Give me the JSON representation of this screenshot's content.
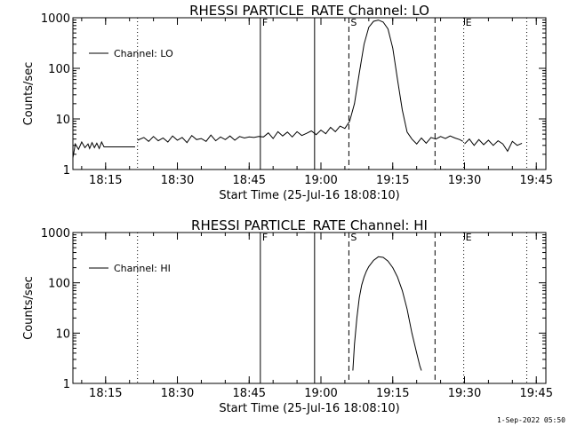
{
  "footer": {
    "timestamp": "1-Sep-2022 05:50"
  },
  "chart_data": [
    {
      "type": "line",
      "title": "RHESSI PARTICLE_RATE Channel: LO",
      "xlabel": "Start Time (25-Jul-16 18:08:10)",
      "ylabel": "Counts/sec",
      "yscale": "log",
      "xlim": [
        "18:08:10",
        "19:47:00"
      ],
      "ylim": [
        1,
        1000
      ],
      "x_ticks": [
        "18:15",
        "18:30",
        "18:45",
        "19:00",
        "19:15",
        "19:30",
        "19:45"
      ],
      "y_ticks": [
        "1",
        "10",
        "100",
        "1000"
      ],
      "legend": {
        "position": "top-left",
        "entries": [
          "Channel: LO"
        ]
      },
      "markers": [
        {
          "time": "18:08:10",
          "style": "dotted",
          "label": ""
        },
        {
          "time": "18:21:40",
          "style": "dotted",
          "label": ""
        },
        {
          "time": "18:47:20",
          "style": "solid",
          "label": "F"
        },
        {
          "time": "18:58:40",
          "style": "solid",
          "label": ""
        },
        {
          "time": "19:05:50",
          "style": "dashed",
          "label": "S"
        },
        {
          "time": "19:23:50",
          "style": "dashed",
          "label": ""
        },
        {
          "time": "19:29:50",
          "style": "dotted",
          "label": "E"
        },
        {
          "time": "19:43:00",
          "style": "dotted",
          "label": ""
        }
      ],
      "series": [
        {
          "name": "Channel: LO",
          "segments": [
            {
              "x": [
                "18:08:10",
                "18:08:40",
                "18:09:20",
                "18:10:00",
                "18:10:40",
                "18:11:20",
                "18:11:40",
                "18:12:10",
                "18:12:40",
                "18:13:10",
                "18:13:40",
                "18:14:10",
                "18:14:40",
                "18:15:00",
                "18:16:00",
                "18:18:00",
                "18:20:00",
                "18:21:10"
              ],
              "y": [
                1.7,
                3.2,
                2.5,
                3.5,
                2.7,
                3.2,
                2.6,
                3.4,
                2.7,
                3.3,
                2.6,
                3.5,
                2.8,
                2.8,
                2.8,
                2.8,
                2.8,
                2.8
              ]
            },
            {
              "x": [
                "18:21:40",
                "18:23:00",
                "18:24:00",
                "18:25:00",
                "18:26:00",
                "18:27:00",
                "18:28:00",
                "18:29:00",
                "18:30:00",
                "18:31:00",
                "18:32:00",
                "18:33:00",
                "18:34:00",
                "18:35:00",
                "18:36:00",
                "18:37:00",
                "18:38:00",
                "18:39:00",
                "18:40:00",
                "18:41:00",
                "18:42:00",
                "18:43:00",
                "18:44:00",
                "18:45:00",
                "18:46:00",
                "18:47:00",
                "18:48:00",
                "18:49:00",
                "18:50:00",
                "18:51:00",
                "18:52:00",
                "18:53:00",
                "18:54:00",
                "18:55:00",
                "18:56:00",
                "18:57:00",
                "18:58:00",
                "18:59:00",
                "19:00:00",
                "19:01:00",
                "19:02:00",
                "19:03:00",
                "19:04:00",
                "19:05:00",
                "19:06:00",
                "19:07:00",
                "19:08:00",
                "19:09:00",
                "19:10:00",
                "19:11:00",
                "19:12:00",
                "19:13:00",
                "19:14:00",
                "19:15:00",
                "19:16:00",
                "19:17:00",
                "19:18:00",
                "19:19:00",
                "19:20:00",
                "19:21:00",
                "19:22:00",
                "19:23:00",
                "19:24:00",
                "19:25:00",
                "19:26:00",
                "19:27:00",
                "19:28:00",
                "19:29:00",
                "19:29:40"
              ],
              "y": [
                3.8,
                4.3,
                3.6,
                4.5,
                3.7,
                4.2,
                3.5,
                4.6,
                3.8,
                4.3,
                3.4,
                4.7,
                3.9,
                4.1,
                3.6,
                4.8,
                3.7,
                4.4,
                3.9,
                4.6,
                3.8,
                4.5,
                4.2,
                4.4,
                4.3,
                4.5,
                4.4,
                5.3,
                4.1,
                5.6,
                4.6,
                5.5,
                4.4,
                5.6,
                4.7,
                5.2,
                5.8,
                4.9,
                6.0,
                5.1,
                6.8,
                5.6,
                7.2,
                6.5,
                9.0,
                20,
                80,
                300,
                650,
                850,
                900,
                820,
                600,
                250,
                60,
                15,
                5.5,
                4.0,
                3.2,
                4.2,
                3.3,
                4.3,
                4.0,
                4.5,
                4.1,
                4.6,
                4.2,
                3.9,
                3.6
              ]
            },
            {
              "x": [
                "19:30:00",
                "19:31:00",
                "19:32:00",
                "19:33:00",
                "19:34:00",
                "19:35:00",
                "19:36:00",
                "19:37:00",
                "19:38:00",
                "19:39:00",
                "19:40:00",
                "19:41:00",
                "19:42:00"
              ],
              "y": [
                3.2,
                4.0,
                3.0,
                3.9,
                3.1,
                3.8,
                3.0,
                3.7,
                3.2,
                2.3,
                3.6,
                3.0,
                3.3
              ]
            }
          ]
        }
      ]
    },
    {
      "type": "line",
      "title": "RHESSI PARTICLE_RATE Channel: HI",
      "xlabel": "Start Time (25-Jul-16 18:08:10)",
      "ylabel": "Counts/sec",
      "yscale": "log",
      "xlim": [
        "18:08:10",
        "19:47:00"
      ],
      "ylim": [
        1,
        1000
      ],
      "x_ticks": [
        "18:15",
        "18:30",
        "18:45",
        "19:00",
        "19:15",
        "19:30",
        "19:45"
      ],
      "y_ticks": [
        "1",
        "10",
        "100",
        "1000"
      ],
      "legend": {
        "position": "top-left",
        "entries": [
          "Channel: HI"
        ]
      },
      "markers": [
        {
          "time": "18:08:10",
          "style": "dotted",
          "label": ""
        },
        {
          "time": "18:21:40",
          "style": "dotted",
          "label": ""
        },
        {
          "time": "18:47:20",
          "style": "solid",
          "label": "F"
        },
        {
          "time": "18:58:40",
          "style": "solid",
          "label": ""
        },
        {
          "time": "19:05:50",
          "style": "dashed",
          "label": "S"
        },
        {
          "time": "19:23:50",
          "style": "dashed",
          "label": ""
        },
        {
          "time": "19:29:50",
          "style": "dotted",
          "label": "E"
        },
        {
          "time": "19:43:00",
          "style": "dotted",
          "label": ""
        }
      ],
      "series": [
        {
          "name": "Channel: HI",
          "segments": [
            {
              "x": [
                "19:06:40",
                "19:07:00",
                "19:07:30",
                "19:08:00",
                "19:08:30",
                "19:09:00",
                "19:09:30",
                "19:10:00",
                "19:11:00",
                "19:12:00",
                "19:13:00",
                "19:14:00",
                "19:15:00",
                "19:16:00",
                "19:17:00",
                "19:18:00",
                "19:19:00",
                "19:20:00",
                "19:20:40",
                "19:21:00"
              ],
              "y": [
                1.8,
                6,
                20,
                50,
                90,
                130,
                170,
                210,
                280,
                330,
                320,
                270,
                200,
                130,
                70,
                30,
                10,
                4,
                2.2,
                1.8
              ]
            }
          ]
        }
      ]
    }
  ]
}
